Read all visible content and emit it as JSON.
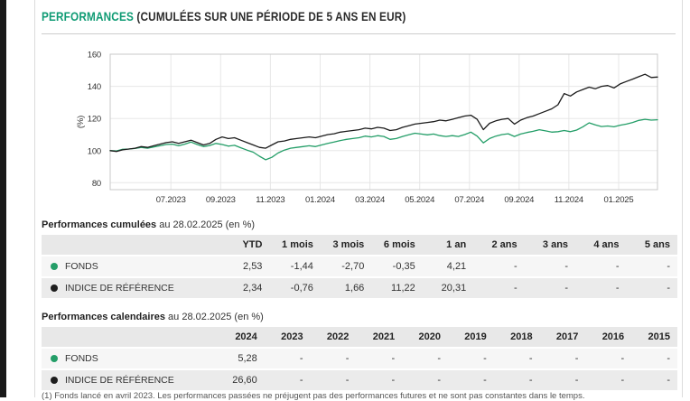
{
  "page": {
    "title_highlight": "PERFORMANCES",
    "title_rest": "(CUMULÉES SUR UNE PÉRIODE DE 5 ANS EN EUR)",
    "footnote": "(1) Fonds lancé en avril 2023. Les performances passées ne préjugent pas des performances futures et ne sont pas constantes dans le temps."
  },
  "colors": {
    "accent_green": "#0f9b74",
    "fund_green": "#249e68",
    "index_black": "#1c1c1c",
    "table_header_bg": "#e8e8e8"
  },
  "chart_data": {
    "type": "line",
    "title": "",
    "xlabel": "",
    "ylabel": "(%)",
    "ylim": [
      75.7,
      160
    ],
    "yticks": [
      160,
      140,
      120,
      100,
      80
    ],
    "x_range_months": [
      0,
      22
    ],
    "sample_step_months": 0.25,
    "grid": true,
    "legend_position": "none",
    "xticks": [
      {
        "pos": 2.44,
        "label": "07.2023"
      },
      {
        "pos": 4.44,
        "label": "09.2023"
      },
      {
        "pos": 6.44,
        "label": "11.2023"
      },
      {
        "pos": 8.44,
        "label": "01.2024"
      },
      {
        "pos": 10.44,
        "label": "03.2024"
      },
      {
        "pos": 12.44,
        "label": "05.2024"
      },
      {
        "pos": 14.44,
        "label": "07.2024"
      },
      {
        "pos": 16.44,
        "label": "09.2024"
      },
      {
        "pos": 18.44,
        "label": "11.2024"
      },
      {
        "pos": 20.44,
        "label": "01.2025"
      }
    ],
    "series": [
      {
        "name": "FONDS",
        "color": "#249e68",
        "values": [
          100,
          99.8,
          100.8,
          101,
          101.3,
          102,
          101.5,
          102.3,
          103,
          103.8,
          104,
          103,
          104,
          105.3,
          103.8,
          102.5,
          103.2,
          104.5,
          103.8,
          102.8,
          103.3,
          101.8,
          100.3,
          99,
          96.5,
          94.3,
          95.8,
          98.5,
          100.3,
          101.5,
          102,
          102.5,
          103,
          102.5,
          103.5,
          104.5,
          105.3,
          106.3,
          107,
          107.5,
          108,
          109,
          108.5,
          109.3,
          108.8,
          107,
          107.5,
          108.8,
          109.8,
          110.8,
          110.3,
          109.8,
          110.3,
          109.3,
          108.8,
          109.3,
          108.8,
          110,
          111.5,
          109,
          104.8,
          107.5,
          109,
          110,
          110.5,
          108.8,
          110.3,
          111.3,
          112,
          113,
          112.3,
          111.5,
          111.8,
          112.5,
          111.8,
          112.8,
          114.8,
          117.3,
          116,
          115,
          115.3,
          114.8,
          115.8,
          116.5,
          117.5,
          118.8,
          119.5,
          119,
          119.2
        ]
      },
      {
        "name": "INDICE DE RÉFÉRENCE",
        "color": "#1c1c1c",
        "values": [
          100,
          99.5,
          100.5,
          101,
          101.5,
          102.5,
          102,
          103,
          104,
          105,
          105.5,
          104.5,
          105.5,
          106.5,
          105,
          103.5,
          104.5,
          107,
          108.5,
          107.5,
          108,
          106.5,
          105,
          103.5,
          102,
          101.5,
          103.5,
          105.5,
          106,
          107,
          107.5,
          108,
          108.5,
          108,
          109,
          110,
          110.5,
          111.5,
          112,
          112.5,
          113,
          114,
          113.5,
          114.5,
          114,
          112.5,
          113,
          114.5,
          115.5,
          116.5,
          117,
          117.5,
          118,
          119,
          118.5,
          119.5,
          120.5,
          121.5,
          122,
          119.5,
          113,
          117,
          118.5,
          119.5,
          120,
          116.5,
          119,
          120.5,
          121.5,
          123,
          124.5,
          126,
          128.5,
          135.5,
          134,
          136.5,
          138,
          139.5,
          138.5,
          140,
          140.5,
          139,
          141.5,
          143,
          144.5,
          146,
          147.5,
          145.5,
          145.8
        ]
      }
    ]
  },
  "cumulative_table": {
    "title_bold": "Performances cumulées",
    "title_rest": "au 28.02.2025 (en %)",
    "columns": [
      "YTD",
      "1 mois",
      "3 mois",
      "6 mois",
      "1 an",
      "2 ans",
      "3 ans",
      "4 ans",
      "5 ans"
    ],
    "rows": [
      {
        "label": "FONDS",
        "dot": "#249e68",
        "values": [
          "2,53",
          "-1,44",
          "-2,70",
          "-0,35",
          "4,21",
          "-",
          "-",
          "-",
          "-"
        ]
      },
      {
        "label": "INDICE DE RÉFÉRENCE",
        "dot": "#1c1c1c",
        "values": [
          "2,34",
          "-0,76",
          "1,66",
          "11,22",
          "20,31",
          "-",
          "-",
          "-",
          "-"
        ]
      }
    ]
  },
  "calendar_table": {
    "title_bold": "Performances calendaires",
    "title_rest": "au 28.02.2025 (en %)",
    "columns": [
      "2024",
      "2023",
      "2022",
      "2021",
      "2020",
      "2019",
      "2018",
      "2017",
      "2016",
      "2015"
    ],
    "rows": [
      {
        "label": "FONDS",
        "dot": "#249e68",
        "values": [
          "5,28",
          "-",
          "-",
          "-",
          "-",
          "-",
          "-",
          "-",
          "-",
          "-"
        ]
      },
      {
        "label": "INDICE DE RÉFÉRENCE",
        "dot": "#1c1c1c",
        "values": [
          "26,60",
          "-",
          "-",
          "-",
          "-",
          "-",
          "-",
          "-",
          "-",
          "-"
        ]
      }
    ]
  }
}
